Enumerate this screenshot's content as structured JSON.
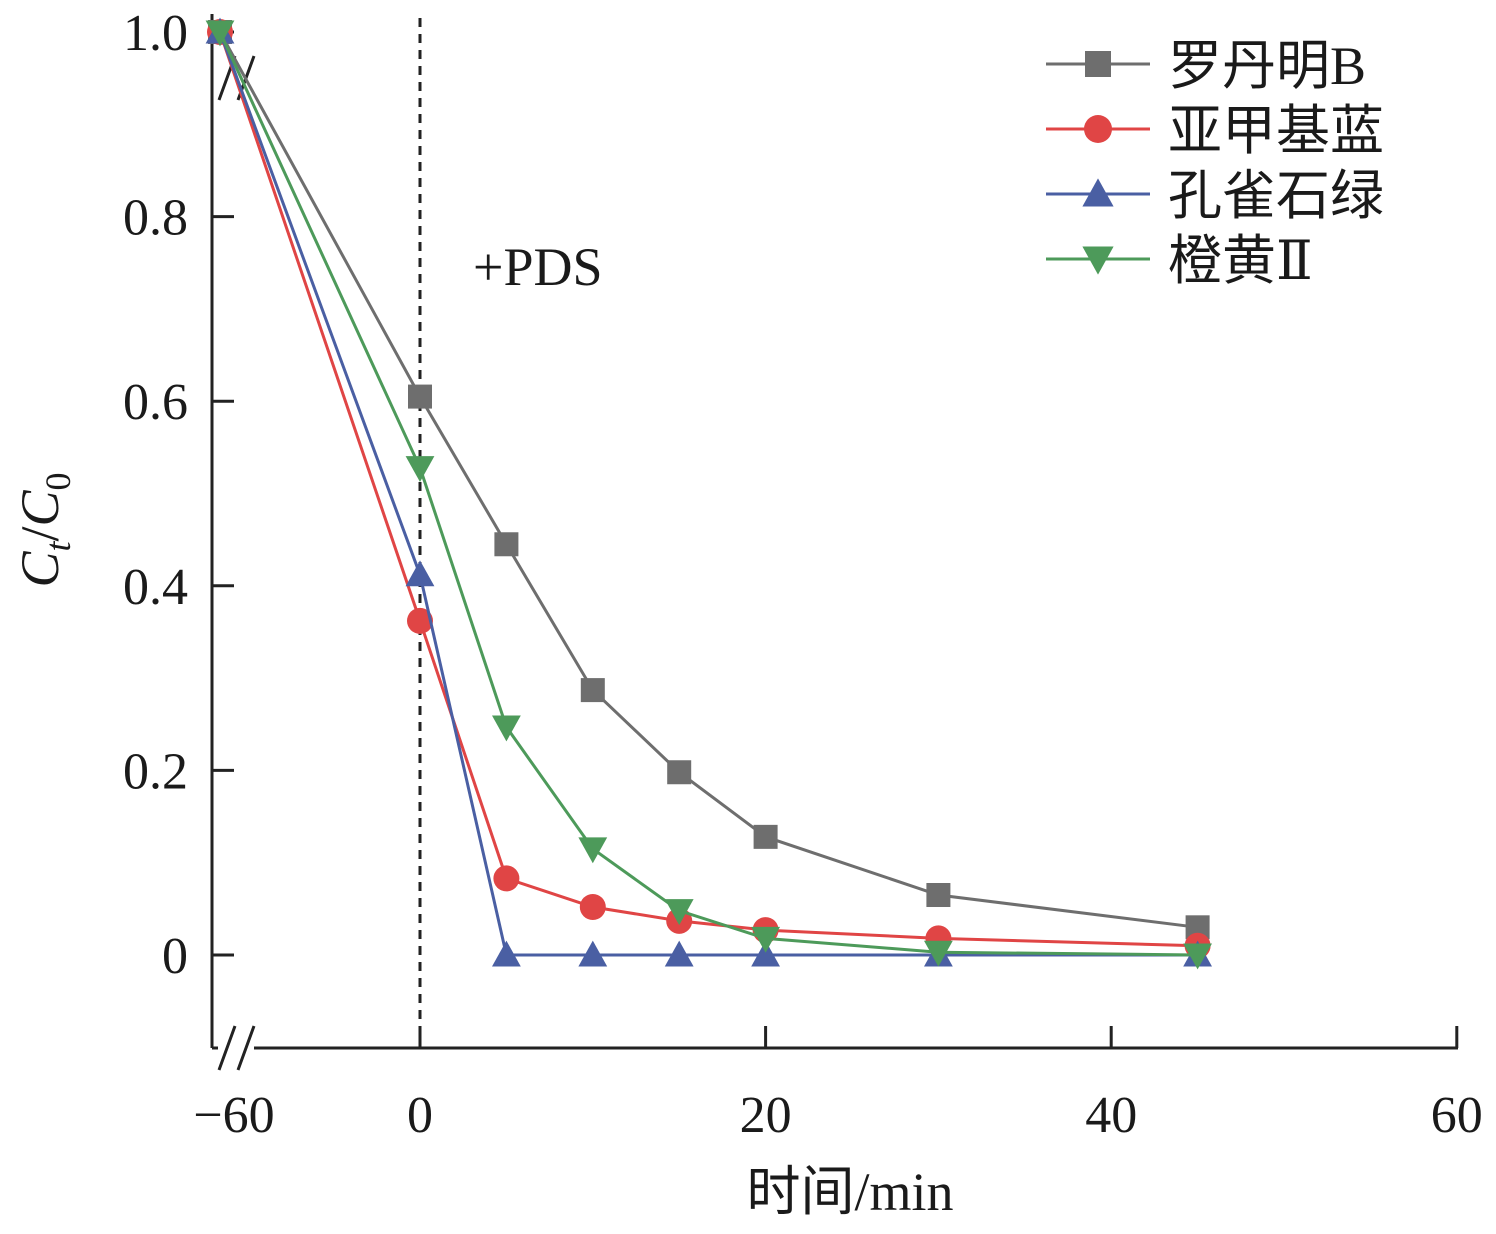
{
  "chart_data": {
    "type": "line",
    "xlabel": "时间/min",
    "ylabel": {
      "base": "C",
      "sub_num": "t",
      "sep": "/",
      "base_den": "C",
      "sub_den": "0"
    },
    "xlim": [
      -60,
      60
    ],
    "ylim": [
      -0.1,
      1.0
    ],
    "x_axis_break": true,
    "y_axis_break": true,
    "xticks": [
      -60,
      0,
      20,
      40,
      60
    ],
    "xtick_labels": [
      "−60",
      "0",
      "20",
      "40",
      "60"
    ],
    "yticks": [
      0,
      0.2,
      0.4,
      0.6,
      0.8,
      1.0
    ],
    "ytick_labels": [
      "0",
      "0.2",
      "0.4",
      "0.6",
      "0.8",
      "1.0"
    ],
    "grid": false,
    "legend_position": "top-right",
    "annotation": {
      "text": "+PDS",
      "x": 0
    },
    "series": [
      {
        "name": "罗丹明B",
        "marker": "square",
        "color": "#6e6e6e",
        "x": [
          -60,
          0,
          5,
          10,
          15,
          20,
          30,
          45
        ],
        "y": [
          1.0,
          0.605,
          0.445,
          0.287,
          0.198,
          0.128,
          0.065,
          0.03
        ]
      },
      {
        "name": "亚甲基蓝",
        "marker": "circle",
        "color": "#e04545",
        "x": [
          -60,
          0,
          5,
          10,
          15,
          20,
          30,
          45
        ],
        "y": [
          1.0,
          0.362,
          0.083,
          0.052,
          0.037,
          0.027,
          0.018,
          0.01
        ]
      },
      {
        "name": "孔雀石绿",
        "marker": "triangle-up",
        "color": "#4a5fa3",
        "x": [
          -60,
          0,
          5,
          10,
          15,
          20,
          30,
          45
        ],
        "y": [
          1.0,
          0.412,
          0.0,
          0.0,
          0.0,
          0.0,
          0.0,
          0.0
        ]
      },
      {
        "name": "橙黄Ⅱ",
        "marker": "triangle-down",
        "color": "#4d9a5a",
        "x": [
          -60,
          0,
          5,
          10,
          15,
          20,
          30,
          45
        ],
        "y": [
          1.0,
          0.528,
          0.247,
          0.115,
          0.048,
          0.018,
          0.003,
          0.0
        ]
      }
    ]
  }
}
